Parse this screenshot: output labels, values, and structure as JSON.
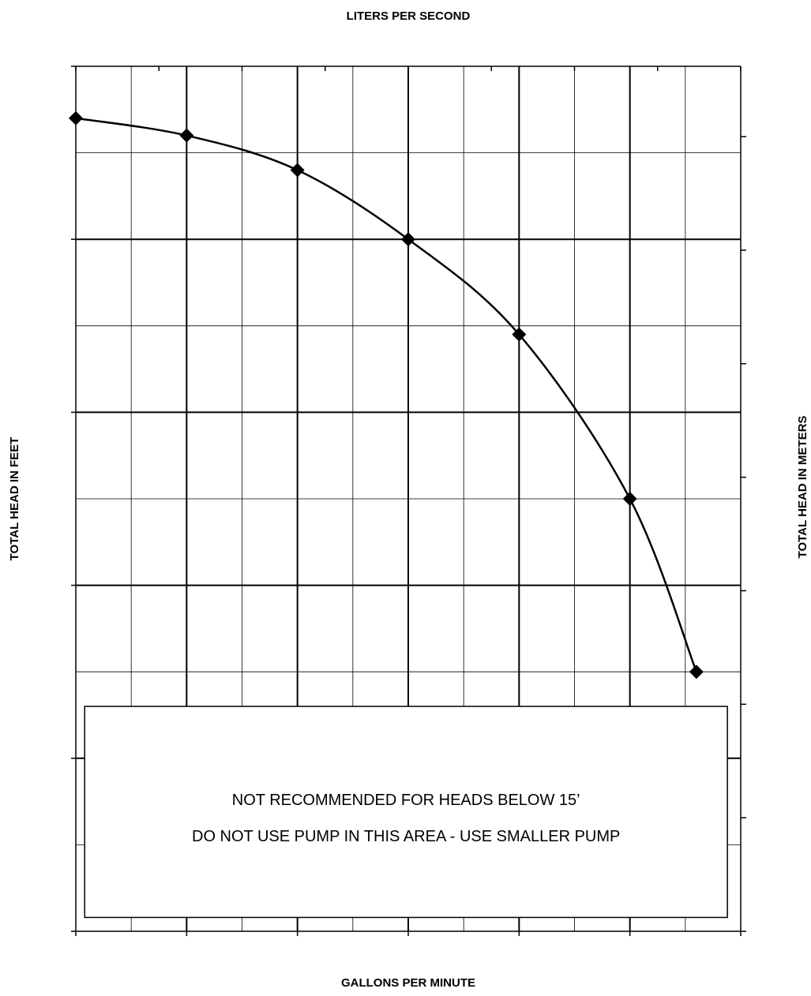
{
  "chart_data": {
    "type": "line",
    "title": "",
    "xlabel": "GALLONS PER MINUTE",
    "ylabel": "TOTAL HEAD IN FEET",
    "x2label": "LITERS PER SECOND",
    "y2label": "TOTAL HEAD IN METERS",
    "xlim": [
      0,
      60
    ],
    "ylim": [
      0,
      50
    ],
    "xticks": [
      "0",
      "10",
      "20",
      "30",
      "40",
      "50",
      "60"
    ],
    "yticks": [
      "0",
      "10",
      "20",
      "30",
      "40",
      "50"
    ],
    "x2ticks": [
      "-0.2",
      "0.3",
      "0.8",
      "1.3",
      "1.8",
      "2.3",
      "2.8",
      "3.3",
      "3.8"
    ],
    "y2ticks": [
      "0.0",
      "2.0",
      "4.0",
      "6.0",
      "8.0",
      "10.0",
      "12.0",
      "14.0"
    ],
    "grid": true,
    "series": [
      {
        "x": [
          0,
          10,
          20,
          30,
          40,
          50,
          56
        ],
        "y": [
          47,
          46,
          44,
          40,
          34.5,
          25,
          15
        ]
      }
    ],
    "annotations": [
      "NOT RECOMMENDED FOR HEADS BELOW 15’",
      "DO NOT USE PUMP IN THIS AREA - USE SMALLER PUMP"
    ],
    "colors": {
      "line": "#000000",
      "grid": "#000000",
      "background": "#ffffff"
    }
  }
}
